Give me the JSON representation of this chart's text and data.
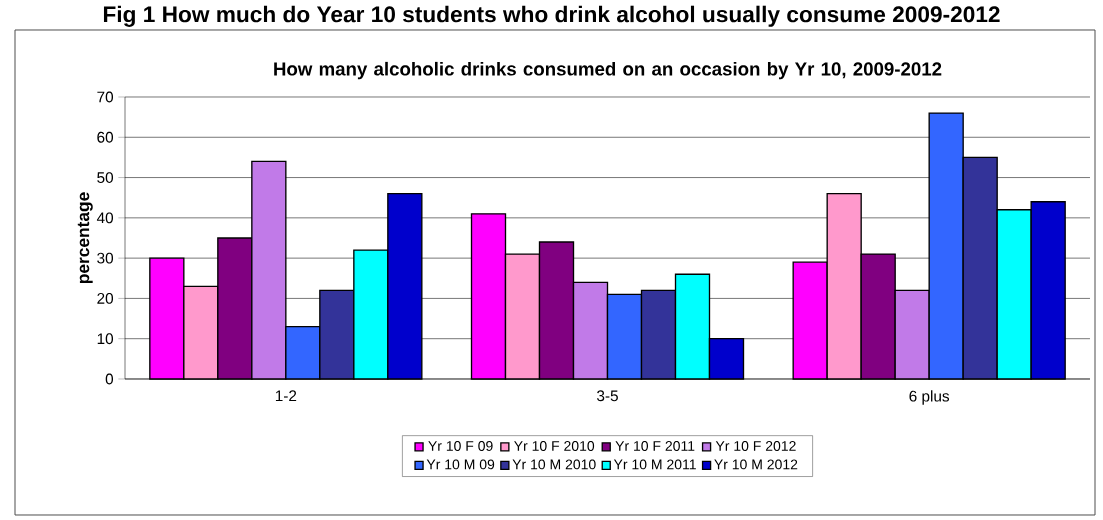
{
  "chart_data": {
    "type": "bar",
    "title": "How many alcoholic drinks consumed on an occasion by Yr 10, 2009-2012",
    "annotations": [
      "Fig 1 How much do Year 10 students who drink alcohol usually consume 2009-2012"
    ],
    "ylabel": "percentage",
    "categories": [
      "1-2",
      "3-5",
      "6 plus"
    ],
    "series": [
      {
        "name": "Yr 10 F 09",
        "color": "#ff00ff",
        "values": [
          30,
          41,
          29
        ]
      },
      {
        "name": "Yr 10 F 2010",
        "color": "#ff99cc",
        "values": [
          23,
          31,
          46
        ]
      },
      {
        "name": "Yr 10 F 2011",
        "color": "#800080",
        "values": [
          35,
          34,
          31
        ]
      },
      {
        "name": "Yr 10 F 2012",
        "color": "#c17ae8",
        "values": [
          54,
          24,
          22
        ]
      },
      {
        "name": "Yr 10 M 09",
        "color": "#3366ff",
        "values": [
          13,
          21,
          66
        ]
      },
      {
        "name": "Yr 10 M 2010",
        "color": "#333399",
        "values": [
          22,
          22,
          55
        ]
      },
      {
        "name": "Yr 10 M 2011",
        "color": "#00ffff",
        "values": [
          32,
          26,
          42
        ]
      },
      {
        "name": "Yr 10 M 2012",
        "color": "#0000cc",
        "values": [
          46,
          10,
          44
        ]
      }
    ],
    "ylim": [
      0,
      70
    ],
    "yticks": [
      0,
      10,
      20,
      30,
      40,
      50,
      60,
      70
    ],
    "grid": "y",
    "legend": "bottom"
  }
}
